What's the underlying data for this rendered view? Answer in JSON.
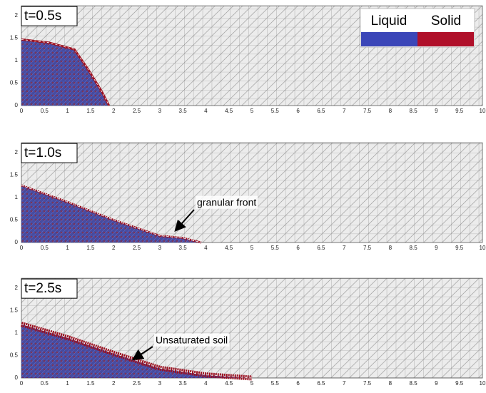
{
  "legend": {
    "liquid": "Liquid",
    "solid": "Solid"
  },
  "axes": {
    "xticks": [
      0,
      0.5,
      1,
      1.5,
      2,
      2.5,
      3,
      3.5,
      4,
      4.5,
      5,
      5.5,
      6,
      6.5,
      7,
      7.5,
      8,
      8.5,
      9,
      9.5,
      10
    ],
    "yticks": [
      0,
      0.5,
      1,
      1.5,
      2
    ]
  },
  "panels": [
    {
      "time": "t=0.5s"
    },
    {
      "time": "t=1.0s",
      "annotation": "granular front"
    },
    {
      "time": "t=2.5s",
      "annotation": "Unsaturated soil"
    }
  ]
}
